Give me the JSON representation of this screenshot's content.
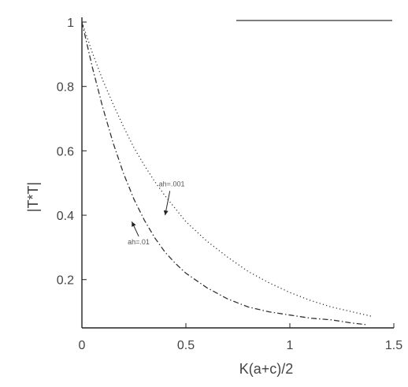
{
  "chart_data": {
    "type": "line",
    "xlabel": "K(a+c)/2",
    "ylabel": "|T*T|",
    "xlim": [
      0,
      1.5
    ],
    "ylim": [
      0.05,
      1
    ],
    "x_ticks": [
      "0",
      "0.5",
      "1",
      "1.5"
    ],
    "y_ticks": [
      "1",
      "0.8",
      "0.6",
      "0.4",
      "0.2"
    ],
    "x_tick_values": [
      0,
      0.5,
      1,
      1.5
    ],
    "y_tick_values": [
      1,
      0.8,
      0.6,
      0.4,
      0.2
    ],
    "grid": false,
    "series": [
      {
        "label": "ah=.001",
        "style": "dotted",
        "color": "#333333",
        "x": [
          0,
          0.05,
          0.1,
          0.15,
          0.2,
          0.25,
          0.3,
          0.35,
          0.4,
          0.45,
          0.5,
          0.6,
          0.7,
          0.8,
          0.9,
          1.0,
          1.1,
          1.2,
          1.3,
          1.4
        ],
        "y": [
          1.0,
          0.905,
          0.82,
          0.745,
          0.675,
          0.61,
          0.555,
          0.505,
          0.46,
          0.42,
          0.38,
          0.32,
          0.27,
          0.225,
          0.19,
          0.16,
          0.135,
          0.115,
          0.1,
          0.085
        ]
      },
      {
        "label": "ah=.01",
        "style": "dashdot",
        "color": "#333333",
        "x": [
          0,
          0.05,
          0.1,
          0.15,
          0.2,
          0.25,
          0.3,
          0.35,
          0.4,
          0.45,
          0.5,
          0.6,
          0.7,
          0.8,
          0.9,
          1.0,
          1.1,
          1.2,
          1.3,
          1.37
        ],
        "y": [
          1.0,
          0.86,
          0.735,
          0.625,
          0.53,
          0.45,
          0.385,
          0.33,
          0.285,
          0.25,
          0.22,
          0.175,
          0.14,
          0.115,
          0.1,
          0.09,
          0.08,
          0.075,
          0.065,
          0.06
        ]
      }
    ],
    "annotations": [
      {
        "text": "ah=.001",
        "x": 0.37,
        "y": 0.49,
        "arrow_to": [
          0.4,
          0.4
        ]
      },
      {
        "text": "ah=.01",
        "x": 0.22,
        "y": 0.31,
        "arrow_to": [
          0.24,
          0.38
        ]
      }
    ]
  }
}
